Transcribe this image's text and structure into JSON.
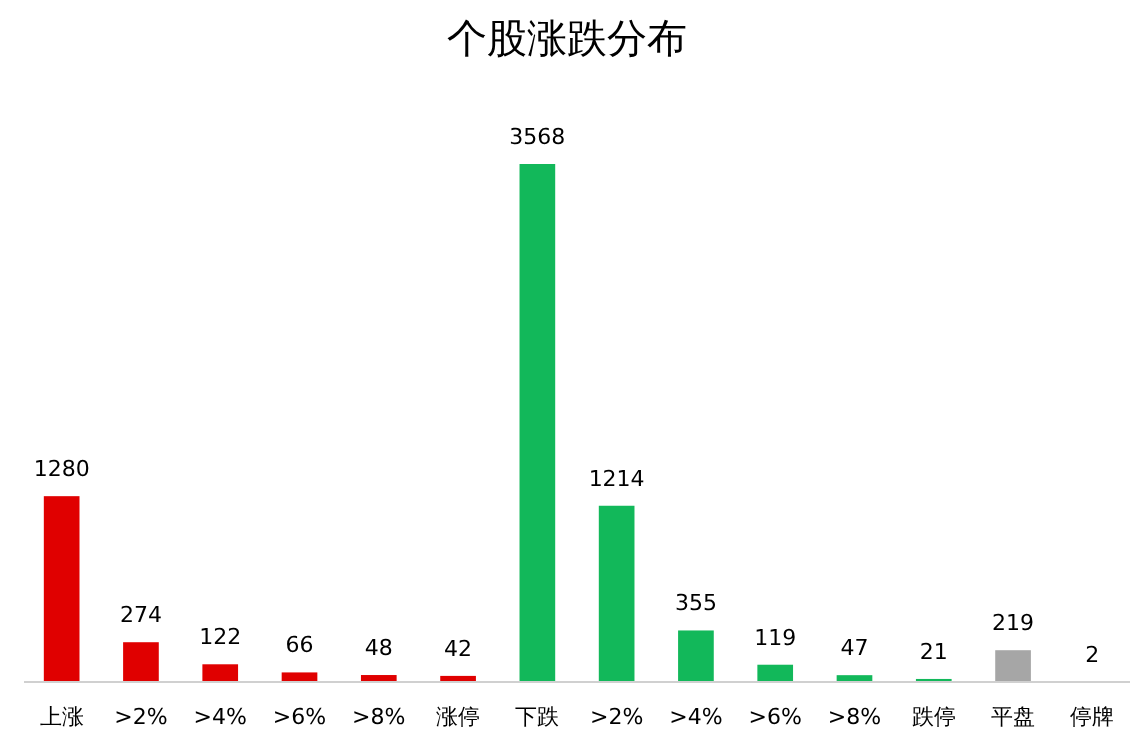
{
  "chart_data": {
    "type": "bar",
    "title": "个股涨跌分布",
    "categories": [
      "上涨",
      ">2%",
      ">4%",
      ">6%",
      ">8%",
      "涨停",
      "下跌",
      ">2%",
      ">4%",
      ">6%",
      ">8%",
      "跌停",
      "平盘",
      "停牌"
    ],
    "values": [
      1280,
      274,
      122,
      66,
      48,
      42,
      3568,
      1214,
      355,
      119,
      47,
      21,
      219,
      2
    ],
    "colors": [
      "#e00000",
      "#e00000",
      "#e00000",
      "#e00000",
      "#e00000",
      "#e00000",
      "#12b85a",
      "#12b85a",
      "#12b85a",
      "#12b85a",
      "#12b85a",
      "#12b85a",
      "#a6a6a6",
      "#404040"
    ],
    "data_labels": true
  }
}
